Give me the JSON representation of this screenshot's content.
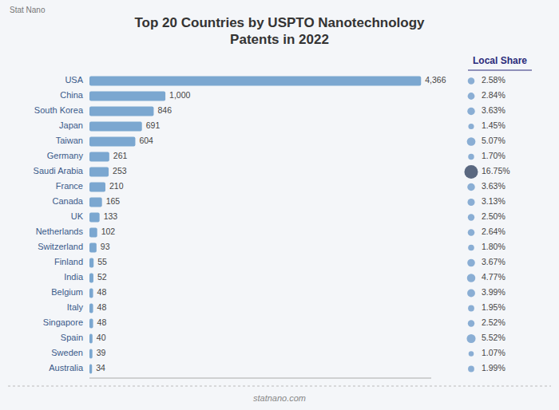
{
  "chart_data": {
    "type": "bar",
    "orientation": "horizontal",
    "title": "Top 20 Countries by USPTO Nanotechnology\nPatents in 2022",
    "categories": [
      "USA",
      "China",
      "South Korea",
      "Japan",
      "Taiwan",
      "Germany",
      "Saudi Arabia",
      "France",
      "Canada",
      "UK",
      "Netherlands",
      "Switzerland",
      "Finland",
      "India",
      "Belgium",
      "Italy",
      "Singapore",
      "Spain",
      "Sweden",
      "Australia"
    ],
    "values": [
      4366,
      1000,
      846,
      691,
      604,
      261,
      253,
      210,
      165,
      133,
      102,
      93,
      55,
      52,
      48,
      48,
      48,
      40,
      39,
      34
    ],
    "value_labels": [
      "4,366",
      "1,000",
      "846",
      "691",
      "604",
      "261",
      "253",
      "210",
      "165",
      "133",
      "102",
      "93",
      "55",
      "52",
      "48",
      "48",
      "48",
      "40",
      "39",
      "34"
    ],
    "data_labels": true,
    "color": "#7ba7d0",
    "xlim": [
      0,
      4500
    ],
    "tick_labels": false,
    "grid": false,
    "local_share": {
      "title": "Local Share",
      "values": [
        2.58,
        2.84,
        3.63,
        1.45,
        5.07,
        1.7,
        16.75,
        3.63,
        3.13,
        2.5,
        2.64,
        1.8,
        3.67,
        4.77,
        3.99,
        1.95,
        2.52,
        5.52,
        1.07,
        1.99
      ],
      "value_labels": [
        "2.58%",
        "2.84%",
        "3.63%",
        "1.45%",
        "5.07%",
        "1.70%",
        "16.75%",
        "3.63%",
        "3.13%",
        "2.50%",
        "2.64%",
        "1.80%",
        "3.67%",
        "4.77%",
        "3.99%",
        "1.95%",
        "2.52%",
        "5.52%",
        "1.07%",
        "1.99%"
      ]
    },
    "annotations": [
      "Stat Nano"
    ],
    "watermark": "statnano.com"
  }
}
